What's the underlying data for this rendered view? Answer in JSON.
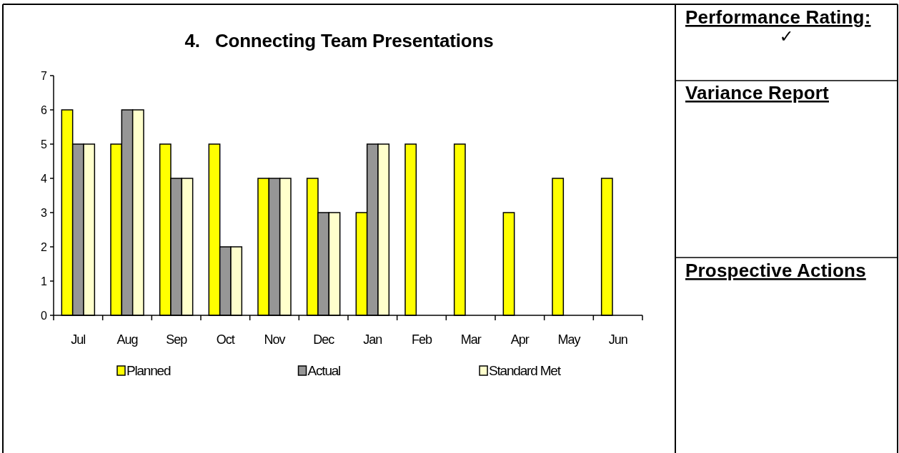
{
  "chart_data": [
    {
      "type": "bar",
      "title": "4.   Connecting Team Presentations",
      "categories": [
        "Jul",
        "Aug",
        "Sep",
        "Oct",
        "Nov",
        "Dec",
        "Jan",
        "Feb",
        "Mar",
        "Apr",
        "May",
        "Jun"
      ],
      "series": [
        {
          "name": "Planned",
          "color": "#ffff00",
          "values": [
            6,
            5,
            5,
            5,
            4,
            4,
            3,
            5,
            5,
            3,
            4,
            4
          ]
        },
        {
          "name": "Actual",
          "color": "#969696",
          "values": [
            5,
            6,
            4,
            2,
            4,
            3,
            5,
            null,
            null,
            null,
            null,
            null
          ]
        },
        {
          "name": "Standard Met",
          "color": "#ffffcc",
          "values": [
            5,
            6,
            4,
            2,
            4,
            3,
            5,
            null,
            null,
            null,
            null,
            null
          ]
        }
      ],
      "ylim": [
        0,
        7
      ],
      "yticks": [
        0,
        1,
        2,
        3,
        4,
        5,
        6,
        7
      ],
      "legend": "bottom"
    },
    {
      "type": "other",
      "annotations": [
        "Performance Rating:",
        "✓",
        "Variance Report",
        "Prospective Actions"
      ]
    }
  ]
}
